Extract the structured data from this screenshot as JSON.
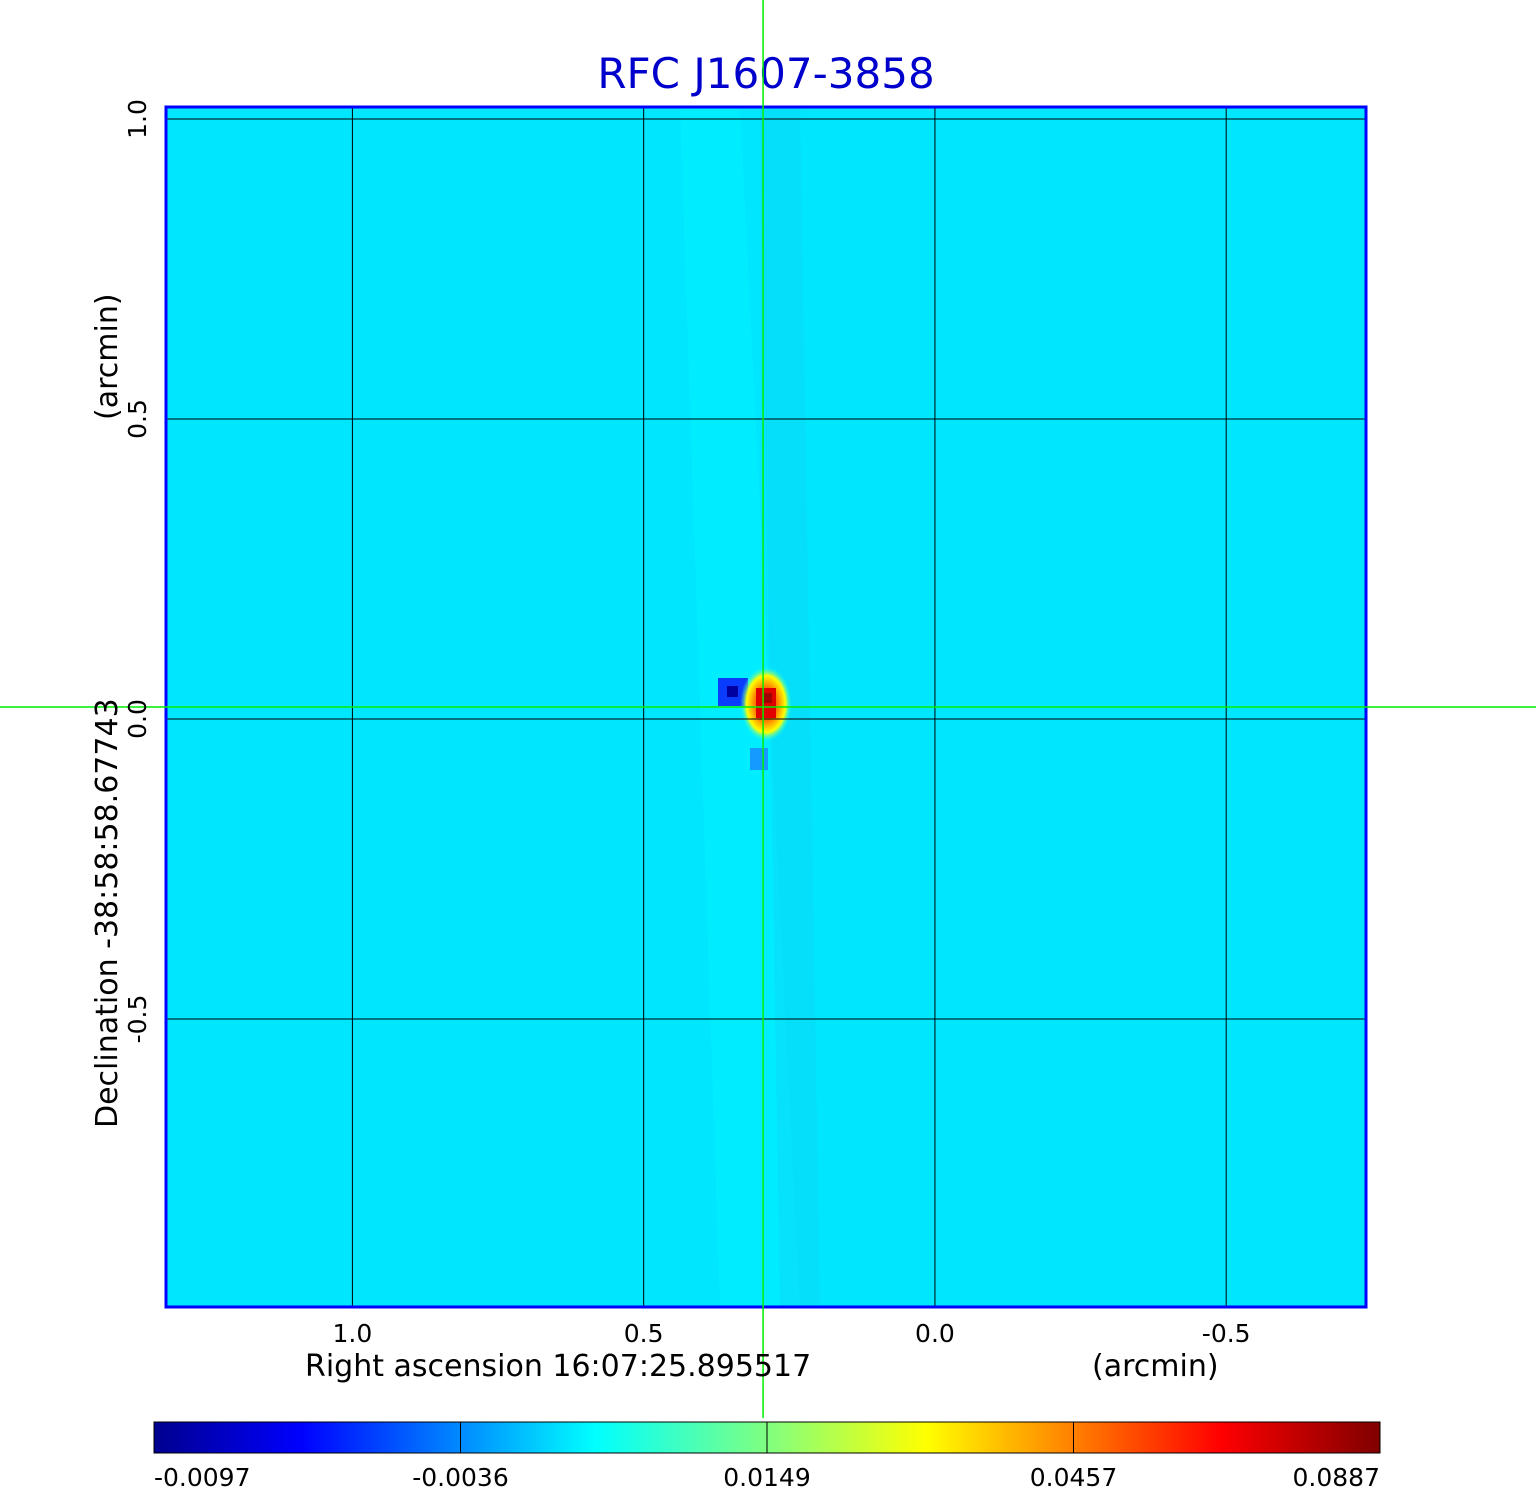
{
  "chart_data": {
    "type": "heatmap",
    "title": "RFC J1607-3858",
    "xlabel": "Right ascension  16:07:25.895517",
    "xunit": "(arcmin)",
    "ylabel": "Declination  -38:58:58.67743",
    "yunit": "(arcmin)",
    "xlim": [
      1.32,
      -0.74
    ],
    "ylim": [
      -0.98,
      1.02
    ],
    "x_ticks": [
      "1.0",
      "0.5",
      "0.0",
      "-0.5"
    ],
    "x_tick_values": [
      1.0,
      0.5,
      0.0,
      -0.5
    ],
    "y_ticks": [
      "-0.5",
      "0.0",
      "0.5",
      "1.0"
    ],
    "y_tick_values": [
      -0.5,
      0.0,
      0.5,
      1.0
    ],
    "grid": true,
    "crosshair": {
      "x": 0.295,
      "y": 0.02
    },
    "colorbar": {
      "min": -0.0097,
      "max": 0.0887,
      "ticks": [
        "-0.0097",
        "-0.0036",
        "0.0149",
        "0.0457",
        "0.0887"
      ],
      "colormap": "jet"
    },
    "peak": {
      "x": 0.295,
      "y": 0.02,
      "value": 0.0887
    },
    "minimum": {
      "x": 0.35,
      "y": 0.05,
      "value": -0.0097
    },
    "colors": {
      "background": "#00e6ff",
      "frame": "#0000ff",
      "grid": "#000000",
      "crosshair": "#00ee00",
      "title": "#0000cc"
    }
  }
}
